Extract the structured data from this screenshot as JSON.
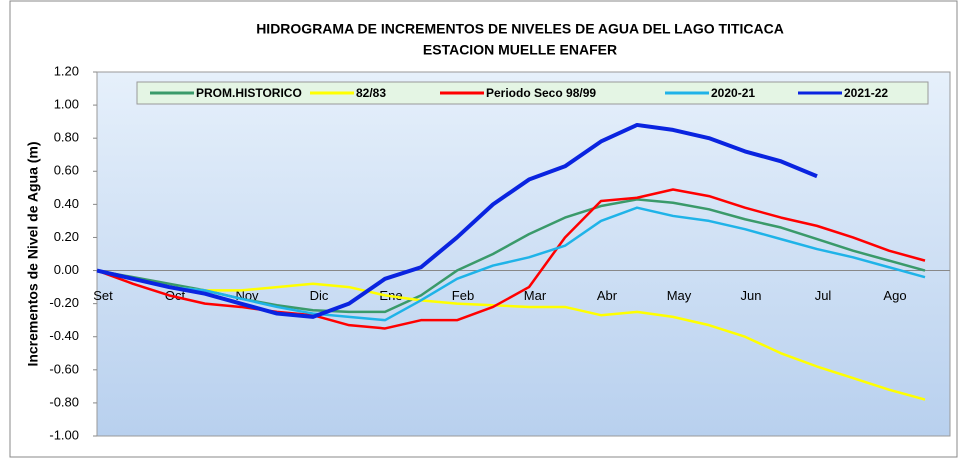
{
  "chart_data": {
    "type": "line",
    "title": "HIDROGRAMA DE INCREMENTOS DE NIVELES DE AGUA DEL  LAGO TITICACA",
    "subtitle": "ESTACION MUELLE ENAFER",
    "y_label": "Incrementos de Nivel de Agua (m)",
    "categories": [
      "Set",
      null,
      "Oct",
      null,
      "Nov",
      null,
      "Dic",
      null,
      "Ene",
      null,
      "Feb",
      null,
      "Mar",
      null,
      "Abr",
      null,
      "May",
      null,
      "Jun",
      null,
      "Jul",
      null,
      "Ago",
      null
    ],
    "series": [
      {
        "name": "PROM.HISTORICO",
        "color": "#3a9a6a",
        "values": [
          0,
          -0.04,
          -0.08,
          -0.12,
          -0.17,
          -0.21,
          -0.24,
          -0.25,
          -0.25,
          -0.15,
          0.0,
          0.1,
          0.22,
          0.32,
          0.39,
          0.43,
          0.41,
          0.37,
          0.31,
          0.26,
          0.19,
          0.12,
          0.06,
          0.0
        ]
      },
      {
        "name": "82/83",
        "color": "#ffff00",
        "values": [
          0,
          -0.05,
          -0.1,
          -0.12,
          -0.12,
          -0.1,
          -0.08,
          -0.1,
          -0.15,
          -0.18,
          -0.2,
          -0.21,
          -0.22,
          -0.22,
          -0.27,
          -0.25,
          -0.28,
          -0.33,
          -0.4,
          -0.5,
          -0.58,
          -0.65,
          -0.72,
          -0.78
        ]
      },
      {
        "name": "Periodo Seco 98/99",
        "color": "#ff0000",
        "values": [
          0,
          -0.08,
          -0.15,
          -0.2,
          -0.22,
          -0.25,
          -0.27,
          -0.33,
          -0.35,
          -0.3,
          -0.3,
          -0.22,
          -0.1,
          0.2,
          0.42,
          0.44,
          0.49,
          0.45,
          0.38,
          0.32,
          0.27,
          0.2,
          0.12,
          0.06
        ]
      },
      {
        "name": "2020-21",
        "color": "#1fb3e8",
        "values": [
          0,
          -0.05,
          -0.1,
          -0.12,
          -0.17,
          -0.22,
          -0.26,
          -0.28,
          -0.3,
          -0.18,
          -0.05,
          0.03,
          0.08,
          0.15,
          0.3,
          0.38,
          0.33,
          0.3,
          0.25,
          0.19,
          0.13,
          0.08,
          0.02,
          -0.04
        ]
      },
      {
        "name": "2021-22",
        "color": "#0a24e0",
        "values": [
          0,
          -0.05,
          -0.1,
          -0.14,
          -0.2,
          -0.26,
          -0.28,
          -0.2,
          -0.05,
          0.02,
          0.2,
          0.4,
          0.55,
          0.63,
          0.78,
          0.88,
          0.85,
          0.8,
          0.72,
          0.66,
          0.57,
          null,
          null,
          null
        ]
      }
    ],
    "ylim": [
      -1.0,
      1.2
    ],
    "yticks": [
      {
        "value": -1.0,
        "label": "-1.00"
      },
      {
        "value": -0.8,
        "label": "-0.80"
      },
      {
        "value": -0.6,
        "label": "-0.60"
      },
      {
        "value": -0.4,
        "label": "-0.40"
      },
      {
        "value": -0.2,
        "label": "-0.20"
      },
      {
        "value": 0,
        "label": "0.00"
      },
      {
        "value": 0.2,
        "label": "0.20"
      },
      {
        "value": 0.4,
        "label": "0.40"
      },
      {
        "value": 0.6,
        "label": "0.60"
      },
      {
        "value": 0.8,
        "label": "0.80"
      },
      {
        "value": 1.0,
        "label": "1.00"
      },
      {
        "value": 1.2,
        "label": "1.20"
      }
    ],
    "grid": false
  }
}
